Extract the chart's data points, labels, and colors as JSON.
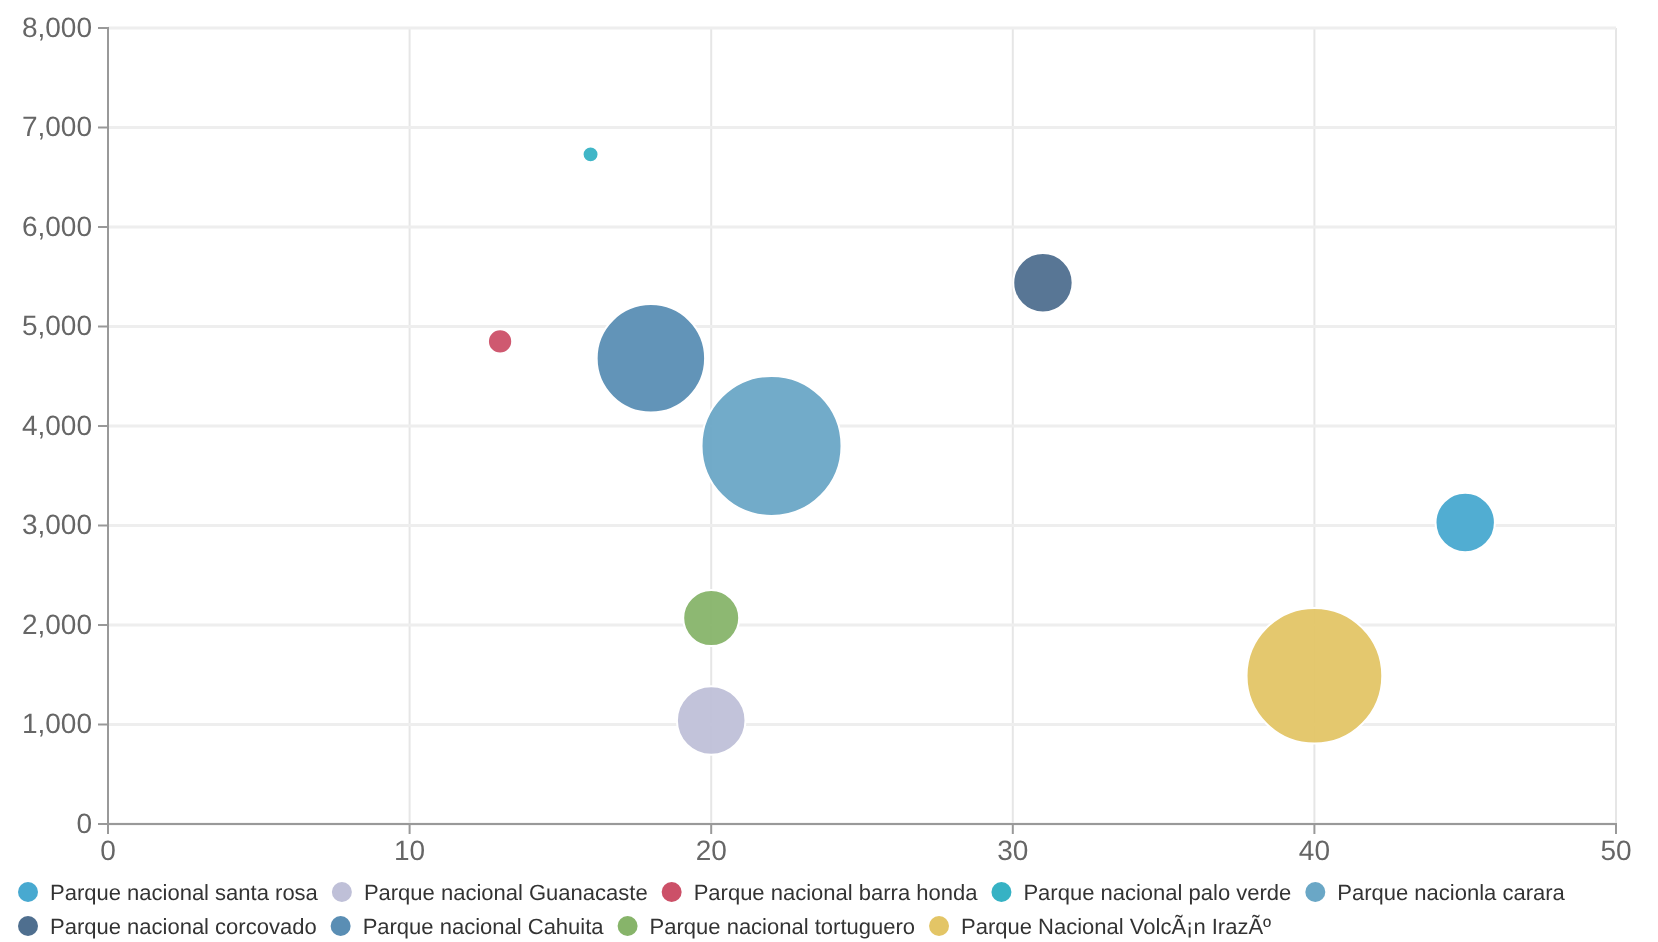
{
  "chart_data": {
    "type": "bubble",
    "xlim": [
      0,
      50
    ],
    "xticks": [
      0,
      10,
      20,
      30,
      40,
      50
    ],
    "ylim": [
      0,
      8000
    ],
    "yticks": [
      {
        "value": 0,
        "label": "0"
      },
      {
        "value": 1000,
        "label": "1,000"
      },
      {
        "value": 2000,
        "label": "2,000"
      },
      {
        "value": 3000,
        "label": "3,000"
      },
      {
        "value": 4000,
        "label": "4,000"
      },
      {
        "value": 5000,
        "label": "5,000"
      },
      {
        "value": 6000,
        "label": "6,000"
      },
      {
        "value": 7000,
        "label": "7,000"
      },
      {
        "value": 8000,
        "label": "8,000"
      }
    ],
    "grid": true,
    "legend": "bottom",
    "series": [
      {
        "name": "Parque nacional santa rosa",
        "color": "#48a9d0",
        "x": [
          45
        ],
        "values": [
          3030
        ],
        "sizes": [
          0.18
        ]
      },
      {
        "name": "Parque nacional Guanacaste",
        "color": "#bfc0d8",
        "x": [
          20
        ],
        "values": [
          1040
        ],
        "sizes": [
          0.24
        ]
      },
      {
        "name": "Parque nacional barra honda",
        "color": "#cc5068",
        "x": [
          13
        ],
        "values": [
          4850
        ],
        "sizes": [
          0.03
        ]
      },
      {
        "name": "Parque nacional palo verde",
        "color": "#36b2c4",
        "x": [
          16
        ],
        "values": [
          6730
        ],
        "sizes": [
          0.013
        ]
      },
      {
        "name": "Parque nacionla carara",
        "color": "#6aa7c6",
        "x": [
          22
        ],
        "values": [
          3800
        ],
        "sizes": [
          1
        ]
      },
      {
        "name": "Parque nacional corcovado",
        "color": "#4f6f8f",
        "x": [
          31
        ],
        "values": [
          5440
        ],
        "sizes": [
          0.18
        ]
      },
      {
        "name": "Parque nacional Cahuita",
        "color": "#5a8eb4",
        "x": [
          18
        ],
        "values": [
          4680
        ],
        "sizes": [
          0.6
        ]
      },
      {
        "name": "Parque nacional tortuguero",
        "color": "#87b46a",
        "x": [
          20
        ],
        "values": [
          2070
        ],
        "sizes": [
          0.16
        ]
      },
      {
        "name": "Parque Nacional VolcÃ¡n IrazÃº",
        "color": "#e3c566",
        "x": [
          40
        ],
        "values": [
          1490
        ],
        "sizes": [
          0.94
        ]
      }
    ]
  }
}
